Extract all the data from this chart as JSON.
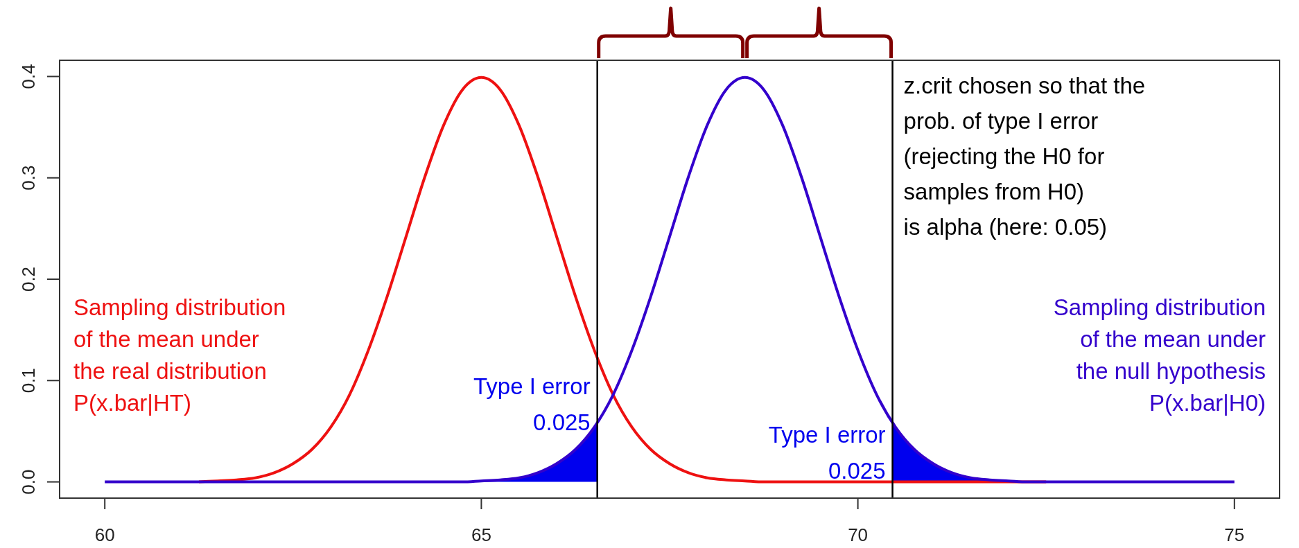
{
  "chart_data": {
    "type": "line",
    "xlim": [
      59.4,
      75.6
    ],
    "ylim": [
      -0.016,
      0.416
    ],
    "xticks": [
      60,
      65,
      70,
      75
    ],
    "yticks": [
      {
        "value": 0,
        "label": "0.0"
      },
      0.1,
      0.2,
      0.3,
      0.4
    ],
    "grid": false,
    "x": [
      60,
      60.25,
      60.5,
      60.75,
      61,
      61.25,
      61.5,
      61.75,
      62,
      62.25,
      62.5,
      62.75,
      63,
      63.25,
      63.5,
      63.75,
      64,
      64.25,
      64.5,
      64.75,
      65,
      65.25,
      65.5,
      65.75,
      66,
      66.25,
      66.5,
      66.75,
      67,
      67.25,
      67.5,
      67.75,
      68,
      68.25,
      68.5,
      68.75,
      69,
      69.25,
      69.5,
      69.75,
      70,
      70.25,
      70.5,
      70.75,
      71,
      71.25,
      71.5,
      71.75,
      72,
      72.25,
      72.5,
      72.75,
      73,
      73.25,
      73.5,
      73.75,
      74,
      74.25,
      74.5,
      74.75,
      75
    ],
    "series": [
      {
        "name": "Sampling distribution\nof the mean under\nthe real distribution\nP(x.bar|HT)",
        "color": "#ee1111",
        "values": [
          null,
          null,
          null,
          null,
          null,
          0,
          0.001,
          0.002,
          0.004,
          0.009,
          0.018,
          0.032,
          0.054,
          0.086,
          0.13,
          0.183,
          0.242,
          0.301,
          0.352,
          0.387,
          0.399,
          0.387,
          0.352,
          0.301,
          0.242,
          0.183,
          0.13,
          0.086,
          0.054,
          0.032,
          0.018,
          0.009,
          0.004,
          0.002,
          0.001,
          0,
          0,
          0,
          0,
          0,
          0,
          0,
          0,
          0,
          0,
          0,
          0,
          0,
          0,
          0,
          0,
          null,
          null,
          null,
          null,
          null,
          null,
          null,
          null,
          null,
          null
        ]
      },
      {
        "name": "Sampling distribution\nof the mean under\nthe null hypothesis\nP(x.bar|H0)",
        "color": "#3300cc",
        "values": [
          0,
          0,
          0,
          0,
          0,
          0,
          0,
          0,
          0,
          0,
          0,
          0,
          0,
          0,
          0,
          0,
          0,
          0,
          0,
          0,
          0.001,
          0.002,
          0.004,
          0.009,
          0.018,
          0.032,
          0.054,
          0.086,
          0.13,
          0.183,
          0.242,
          0.301,
          0.352,
          0.387,
          0.399,
          0.387,
          0.352,
          0.301,
          0.242,
          0.183,
          0.13,
          0.086,
          0.054,
          0.032,
          0.018,
          0.009,
          0.004,
          0.002,
          0.001,
          0,
          0,
          0,
          0,
          0,
          0,
          0,
          0,
          0,
          0,
          0,
          0
        ]
      },
      {
        "type": "area",
        "color": "#0000ee",
        "x": [
          64,
          64.5,
          65,
          65.5,
          65.75,
          66,
          66.25,
          66.5,
          66.54
        ],
        "values": [
          0,
          0,
          0.001,
          0.004,
          0.009,
          0.018,
          0.032,
          0.054,
          0.058
        ]
      },
      {
        "type": "area",
        "color": "#0000ee",
        "x": [
          70.46,
          70.5,
          70.75,
          71,
          71.25,
          71.5,
          72,
          72.5,
          73
        ],
        "values": [
          0.058,
          0.054,
          0.032,
          0.018,
          0.009,
          0.004,
          0.001,
          0,
          0
        ]
      }
    ],
    "ref_lines": [
      {
        "axis": "x",
        "value": 66.54,
        "color": "#000000"
      },
      {
        "axis": "x",
        "value": 70.46,
        "color": "#000000"
      }
    ],
    "annotations": [
      {
        "text": "Type I error\n0.025",
        "x": 66.54,
        "y": 0.058
      },
      {
        "text": "Type I error\n0.025",
        "x": 70.46,
        "y": 0.01
      },
      "z.crit chosen so that the\nprob. of type I error\n(rejecting the H0 for\nsamples from H0)\nis alpha (here: 0.05)"
    ]
  }
}
